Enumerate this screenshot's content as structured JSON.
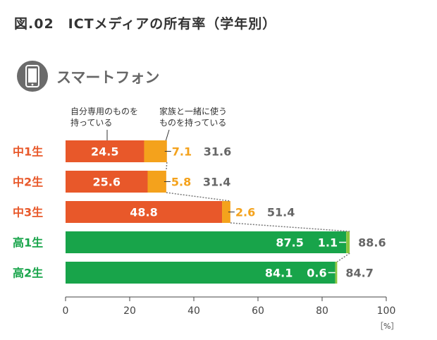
{
  "figure_title": "図.02　ICTメディアの所有率（学年別）",
  "section_title": "スマートフォン",
  "annotations": {
    "own_line1": "自分専用のものを",
    "own_line2": "持っている",
    "family_line1": "家族と一緒に使う",
    "family_line2": "ものを持っている"
  },
  "colors": {
    "junior_high": "#e8582a",
    "high_school": "#18a44a",
    "family_junior": "#f4a21c",
    "family_high": "#8cc63f",
    "total_text": "#666666",
    "icon_bg": "#6b6b6b"
  },
  "icon": "smartphone-icon",
  "chart_data": {
    "type": "bar",
    "orientation": "horizontal",
    "stacked": true,
    "categories": [
      "中1生",
      "中2生",
      "中3生",
      "高1生",
      "高2生"
    ],
    "series": [
      {
        "name": "自分専用のものを持っている",
        "values": [
          24.5,
          25.6,
          48.8,
          87.5,
          84.1
        ]
      },
      {
        "name": "家族と一緒に使うものを持っている",
        "values": [
          7.1,
          5.8,
          2.6,
          1.1,
          0.6
        ]
      }
    ],
    "totals": [
      31.6,
      31.4,
      51.4,
      88.6,
      84.7
    ],
    "labels_own": [
      "24.5",
      "25.6",
      "48.8",
      "87.5",
      "84.1"
    ],
    "labels_family": [
      "7.1",
      "5.8",
      "2.6",
      "1.1",
      "0.6"
    ],
    "labels_total": [
      "31.6",
      "31.4",
      "51.4",
      "88.6",
      "84.7"
    ],
    "xlim": [
      0,
      100
    ],
    "xticks": [
      "0",
      "20",
      "40",
      "60",
      "80",
      "100"
    ],
    "unit": "［%］",
    "grid": false,
    "legend": "annotations-top-left"
  }
}
